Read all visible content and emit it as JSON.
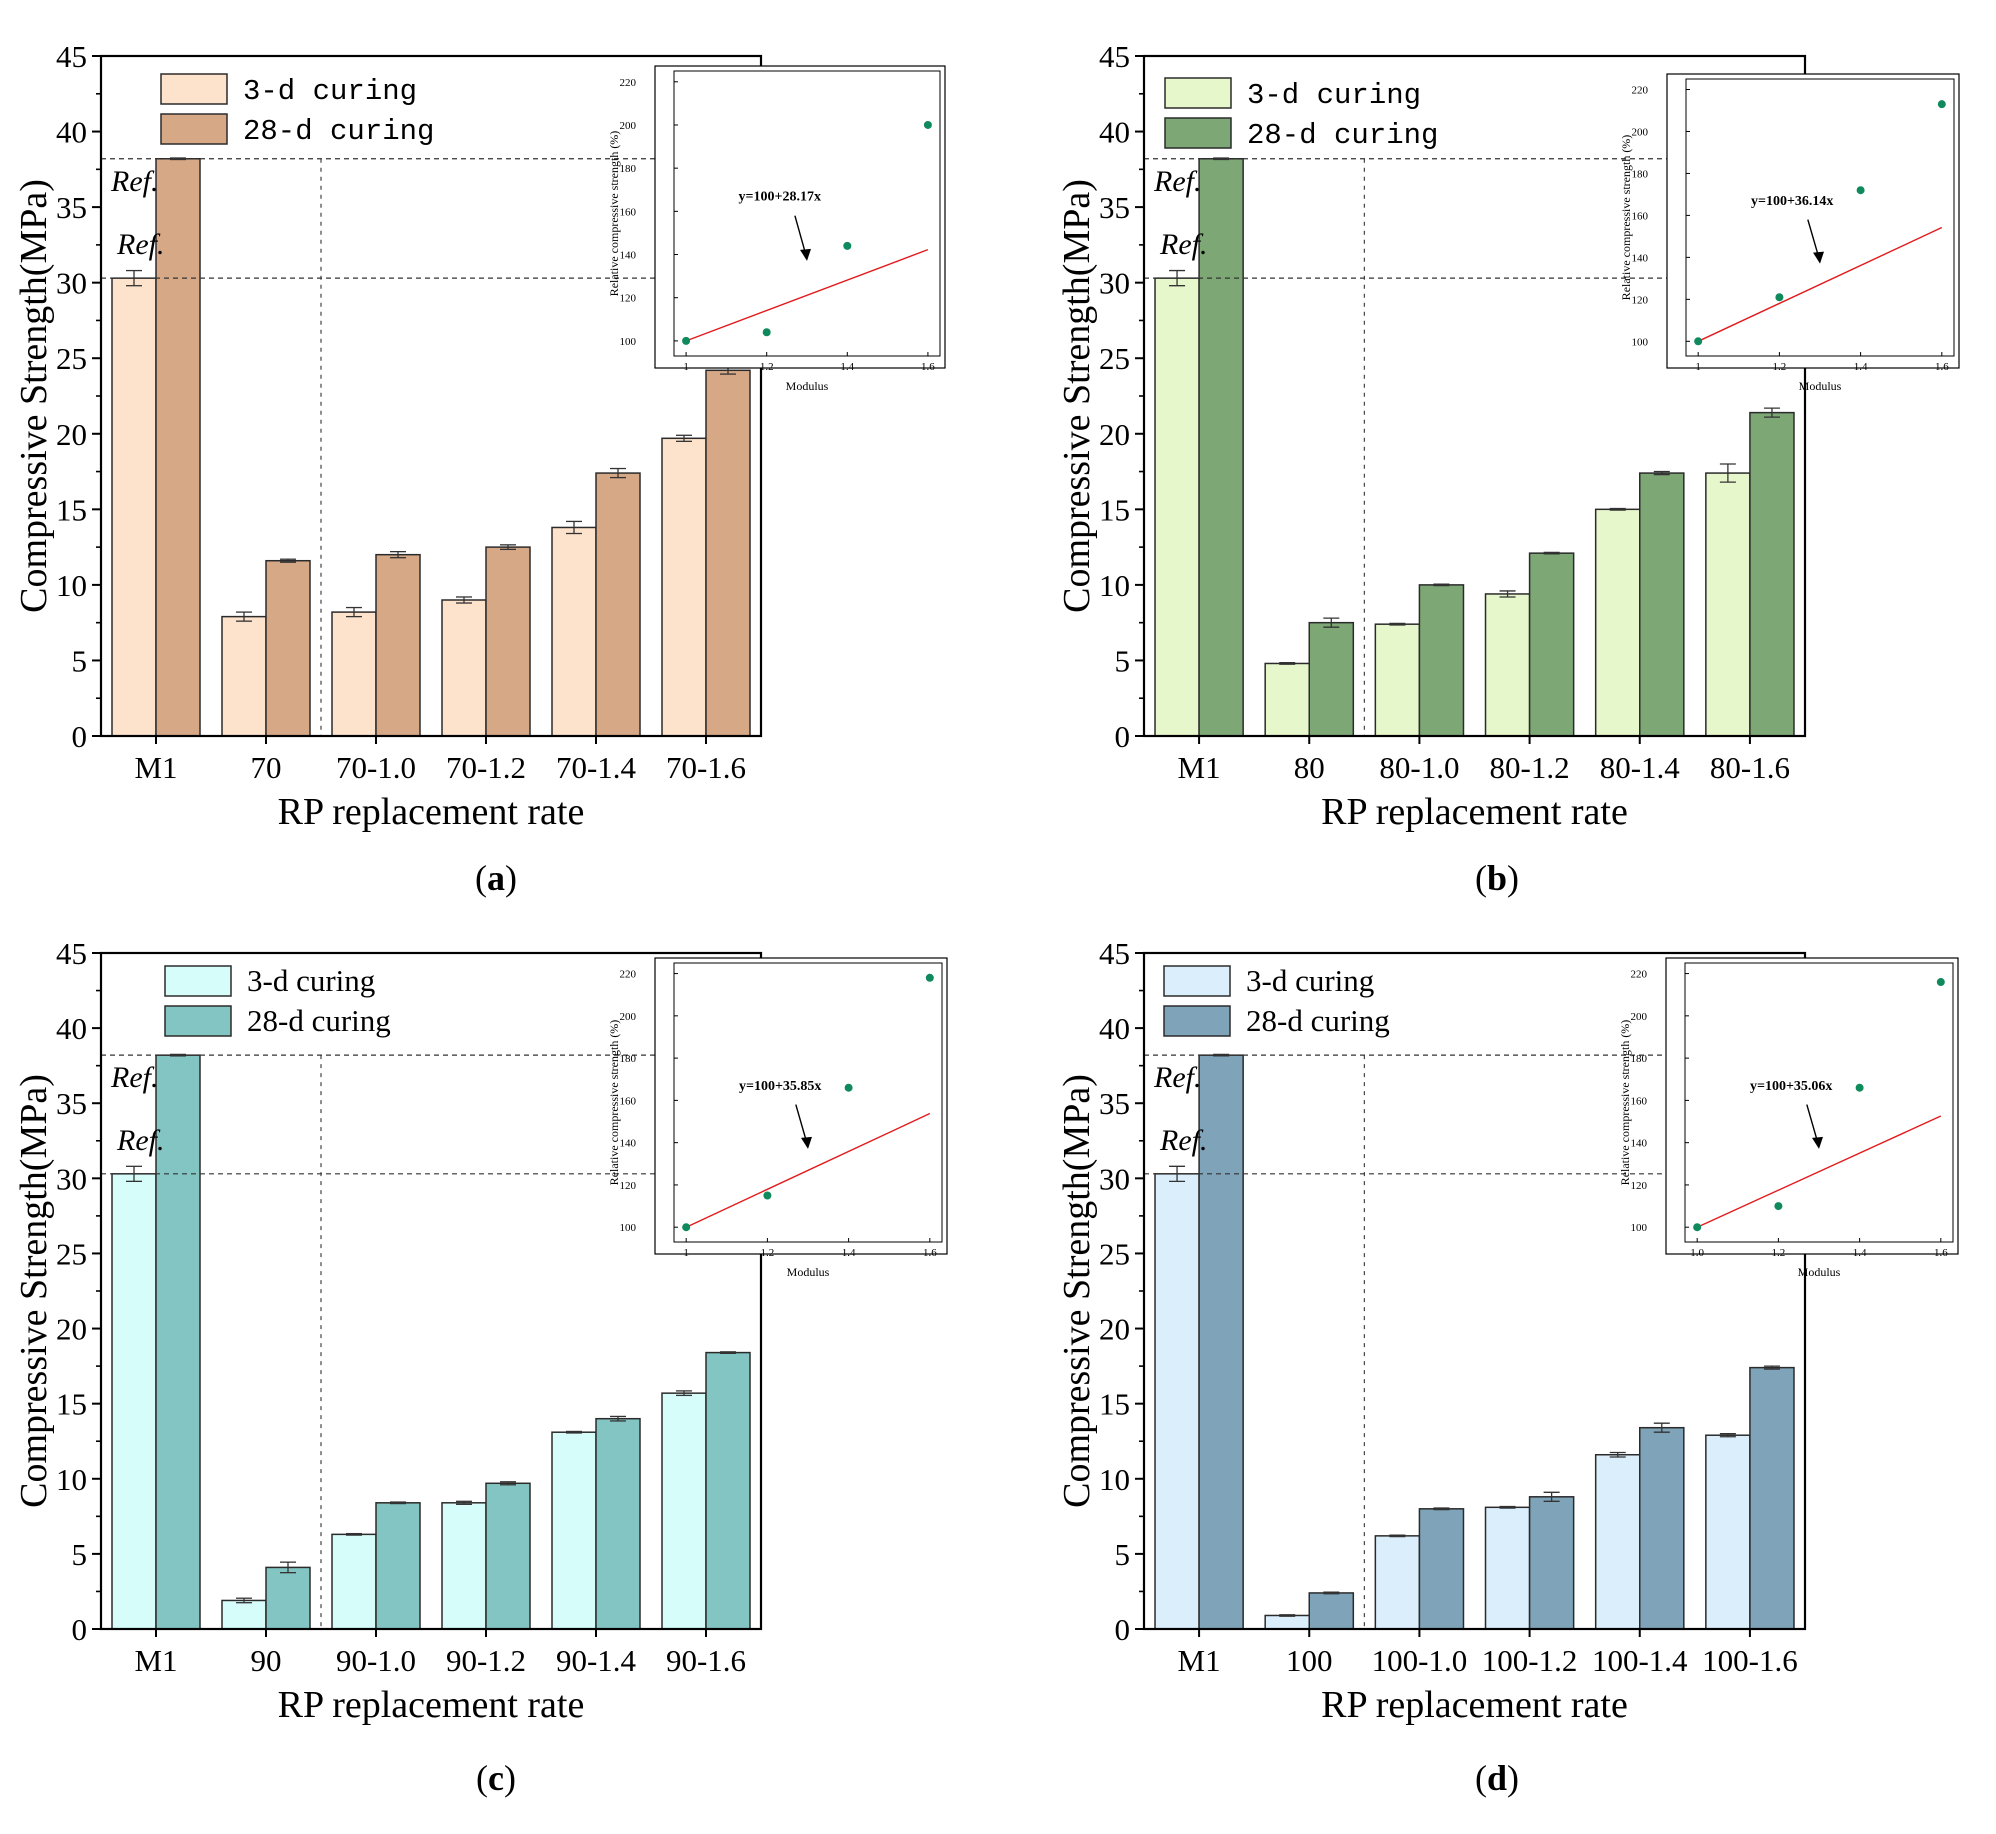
{
  "chart_data": [
    {
      "type": "bar",
      "panel": "a",
      "caption": [
        "(",
        "a",
        ")"
      ],
      "ylabel": "Compressive Strength(MPa)",
      "xlabel": "RP replacement rate",
      "ylim": [
        0,
        45
      ],
      "yticks": [
        "0",
        "5",
        "10",
        "15",
        "20",
        "25",
        "30",
        "35",
        "40",
        "45"
      ],
      "categories": [
        "M1",
        "70",
        "70-1.0",
        "70-1.2",
        "70-1.4",
        "70-1.6"
      ],
      "series": [
        {
          "name": "3-d curing",
          "color": "#fde3cc",
          "values": [
            30.3,
            7.9,
            8.2,
            9.0,
            13.8,
            19.7
          ],
          "errors": [
            0.5,
            0.3,
            0.3,
            0.2,
            0.4,
            0.2
          ]
        },
        {
          "name": "28-d curing",
          "color": "#d6a886",
          "values": [
            38.2,
            11.6,
            12.0,
            12.5,
            17.4,
            24.2
          ],
          "errors": [
            0.05,
            0.1,
            0.2,
            0.15,
            0.3,
            0.25
          ]
        }
      ],
      "legend_font": "mono",
      "reference_lines": [
        {
          "label": "Ref.",
          "value": 38.2
        },
        {
          "label": "Ref.",
          "value": 30.3
        }
      ],
      "inset": {
        "type": "scatter",
        "xlabel": "Modulus",
        "ylabel": "Relative compressive strength (%)",
        "xlim": [
          0.97,
          1.63
        ],
        "ylim": [
          93,
          225
        ],
        "xticks": [
          "1",
          "1.2",
          "1.4",
          "1.6"
        ],
        "yticks": [
          "100",
          "120",
          "140",
          "160",
          "180",
          "200",
          "220"
        ],
        "x": [
          1.0,
          1.2,
          1.4,
          1.6
        ],
        "y": [
          100,
          104,
          144,
          200
        ],
        "fit_slope": 28.17,
        "equation": "y=100+28.17x"
      }
    },
    {
      "type": "bar",
      "panel": "b",
      "caption": [
        "(",
        "b",
        ")"
      ],
      "ylabel": "Compressive Strength(MPa)",
      "xlabel": "RP replacement rate",
      "ylim": [
        0,
        45
      ],
      "yticks": [
        "0",
        "5",
        "10",
        "15",
        "20",
        "25",
        "30",
        "35",
        "40",
        "45"
      ],
      "categories": [
        "M1",
        "80",
        "80-1.0",
        "80-1.2",
        "80-1.4",
        "80-1.6"
      ],
      "series": [
        {
          "name": "3-d curing",
          "color": "#e7f7cc",
          "values": [
            30.3,
            4.8,
            7.4,
            9.4,
            15.0,
            17.4
          ],
          "errors": [
            0.5,
            0.05,
            0.05,
            0.2,
            0.05,
            0.6
          ]
        },
        {
          "name": "28-d curing",
          "color": "#7da876",
          "values": [
            38.2,
            7.5,
            10.0,
            12.1,
            17.4,
            21.4
          ],
          "errors": [
            0.05,
            0.3,
            0.05,
            0.05,
            0.1,
            0.3
          ]
        }
      ],
      "legend_font": "mono",
      "reference_lines": [
        {
          "label": "Ref.",
          "value": 38.2
        },
        {
          "label": "Ref.",
          "value": 30.3
        }
      ],
      "inset": {
        "type": "scatter",
        "xlabel": "Modulus",
        "ylabel": "Relative compressive strength (%)",
        "xlim": [
          0.97,
          1.63
        ],
        "ylim": [
          93,
          225
        ],
        "xticks": [
          "1",
          "1.2",
          "1.4",
          "1.6"
        ],
        "yticks": [
          "100",
          "120",
          "140",
          "160",
          "180",
          "200",
          "220"
        ],
        "x": [
          1.0,
          1.2,
          1.4,
          1.6
        ],
        "y": [
          100,
          121,
          172,
          213
        ],
        "fit_slope": 36.14,
        "equation": "y=100+36.14x"
      }
    },
    {
      "type": "bar",
      "panel": "c",
      "caption": [
        "(",
        "c",
        ")"
      ],
      "ylabel": "Compressive Strength(MPa)",
      "xlabel": "RP replacement rate",
      "ylim": [
        0,
        45
      ],
      "yticks": [
        "0",
        "5",
        "10",
        "15",
        "20",
        "25",
        "30",
        "35",
        "40",
        "45"
      ],
      "categories": [
        "M1",
        "90",
        "90-1.0",
        "90-1.2",
        "90-1.4",
        "90-1.6"
      ],
      "series": [
        {
          "name": "3-d curing",
          "color": "#d6fdfa",
          "values": [
            30.3,
            1.9,
            6.3,
            8.4,
            13.1,
            15.7
          ],
          "errors": [
            0.5,
            0.15,
            0.05,
            0.1,
            0.05,
            0.15
          ]
        },
        {
          "name": "28-d curing",
          "color": "#83c5c2",
          "values": [
            38.2,
            4.1,
            8.4,
            9.7,
            14.0,
            18.4
          ],
          "errors": [
            0.05,
            0.35,
            0.05,
            0.1,
            0.15,
            0.05
          ]
        }
      ],
      "legend_font": "serif",
      "reference_lines": [
        {
          "label": "Ref.",
          "value": 38.2
        },
        {
          "label": "Ref.",
          "value": 30.3
        }
      ],
      "inset": {
        "type": "scatter",
        "xlabel": "Modulus",
        "ylabel": "Relative compressive strength (%)",
        "xlim": [
          0.97,
          1.63
        ],
        "ylim": [
          93,
          225
        ],
        "xticks": [
          "1",
          "1.2",
          "1.4",
          "1.6"
        ],
        "yticks": [
          "100",
          "120",
          "140",
          "160",
          "180",
          "200",
          "220"
        ],
        "x": [
          1.0,
          1.2,
          1.4,
          1.6
        ],
        "y": [
          100,
          115,
          166,
          218
        ],
        "fit_slope": 35.85,
        "equation": "y=100+35.85x"
      }
    },
    {
      "type": "bar",
      "panel": "d",
      "caption": [
        "(",
        "d",
        ")"
      ],
      "ylabel": "Compressive Strength(MPa)",
      "xlabel": "RP replacement rate",
      "ylim": [
        0,
        45
      ],
      "yticks": [
        "0",
        "5",
        "10",
        "15",
        "20",
        "25",
        "30",
        "35",
        "40",
        "45"
      ],
      "categories": [
        "M1",
        "100",
        "100-1.0",
        "100-1.2",
        "100-1.4",
        "100-1.6"
      ],
      "series": [
        {
          "name": "3-d curing",
          "color": "#dbeefc",
          "values": [
            30.3,
            0.9,
            6.2,
            8.1,
            11.6,
            12.9
          ],
          "errors": [
            0.5,
            0.05,
            0.05,
            0.05,
            0.15,
            0.1
          ]
        },
        {
          "name": "28-d curing",
          "color": "#7fa3b8",
          "values": [
            38.2,
            2.4,
            8.0,
            8.8,
            13.4,
            17.4
          ],
          "errors": [
            0.05,
            0.05,
            0.05,
            0.3,
            0.3,
            0.1
          ]
        }
      ],
      "legend_font": "serif",
      "reference_lines": [
        {
          "label": "Ref.",
          "value": 38.2
        },
        {
          "label": "Ref.",
          "value": 30.3
        }
      ],
      "inset": {
        "type": "scatter",
        "xlabel": "Modulus",
        "ylabel": "Relative compressive strength (%)",
        "xlim": [
          0.97,
          1.63
        ],
        "ylim": [
          93,
          225
        ],
        "xticks": [
          "1.0",
          "1.2",
          "1.4",
          "1.6"
        ],
        "yticks": [
          "100",
          "120",
          "140",
          "160",
          "180",
          "200",
          "220"
        ],
        "x": [
          1.0,
          1.2,
          1.4,
          1.6
        ],
        "y": [
          100,
          110,
          166,
          216
        ],
        "fit_slope": 35.06,
        "equation": "y=100+35.06x"
      }
    }
  ],
  "colors": {
    "axis": "#000000",
    "bar_stroke": "#2b2b2b",
    "error_bar": "#333333",
    "reference_line": "#333333",
    "inset_point": "#0f8a5c",
    "fit_line": "#e31a1c"
  }
}
